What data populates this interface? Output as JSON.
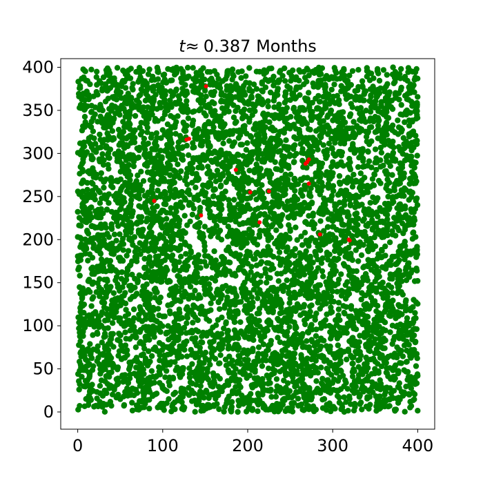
{
  "chart_data": {
    "type": "scatter",
    "title": "t ≈ 0.387 Months",
    "title_variable": "t",
    "title_operator": "≈",
    "title_value": "0.387 Months",
    "xlabel": "",
    "ylabel": "",
    "xlim": [
      -20,
      420
    ],
    "ylim": [
      -20,
      410
    ],
    "x_ticks": [
      0,
      100,
      200,
      300,
      400
    ],
    "y_ticks": [
      0,
      50,
      100,
      150,
      200,
      250,
      300,
      350,
      400
    ],
    "x_tick_labels": [
      "0",
      "100",
      "200",
      "300",
      "400"
    ],
    "y_tick_labels": [
      "0",
      "50",
      "100",
      "150",
      "200",
      "250",
      "300",
      "350",
      "400"
    ],
    "grid": false,
    "legend": "none",
    "domain": {
      "x": [
        0,
        400
      ],
      "y": [
        0,
        400
      ]
    },
    "series": [
      {
        "color": "#008000",
        "points_description_count": 6000
      },
      {
        "color": "#ff0000",
        "points": [
          [
            151,
            378
          ],
          [
            131,
            317
          ],
          [
            128,
            316
          ],
          [
            272,
            293
          ],
          [
            270,
            290
          ],
          [
            268,
            288
          ],
          [
            186,
            281
          ],
          [
            272,
            265
          ],
          [
            203,
            255
          ],
          [
            225,
            256
          ],
          [
            145,
            228
          ],
          [
            214,
            220
          ],
          [
            319,
            200
          ],
          [
            320,
            199
          ],
          [
            285,
            206
          ],
          [
            90,
            245
          ]
        ]
      }
    ]
  },
  "colors": {
    "healthy": "#008000",
    "infected": "#ff0000",
    "axes": "#000000",
    "background": "#ffffff"
  }
}
